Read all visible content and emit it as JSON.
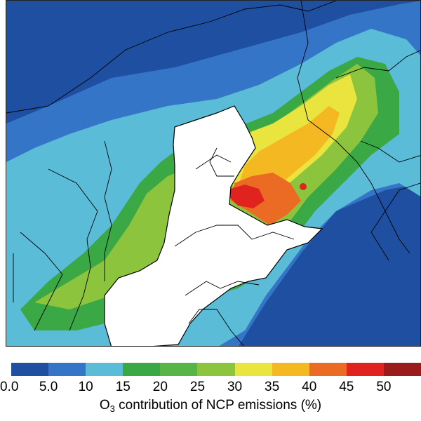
{
  "colorbar": {
    "title_prefix": "O",
    "title_subscript": "3",
    "title_suffix": " contribution of NCP emissions (%)",
    "tick_labels": [
      "0.0",
      "5.0",
      "10",
      "15",
      "20",
      "25",
      "30",
      "35",
      "40",
      "45",
      "50"
    ],
    "colors": [
      "#1f4fa0",
      "#3575c7",
      "#5bbcd8",
      "#39a845",
      "#57b446",
      "#8cc43d",
      "#eae43e",
      "#f4b822",
      "#ec6b24",
      "#e0231e",
      "#9a1b1b"
    ]
  },
  "map": {
    "masked_region_color": "#ffffff",
    "boundary_color": "#000000"
  }
}
